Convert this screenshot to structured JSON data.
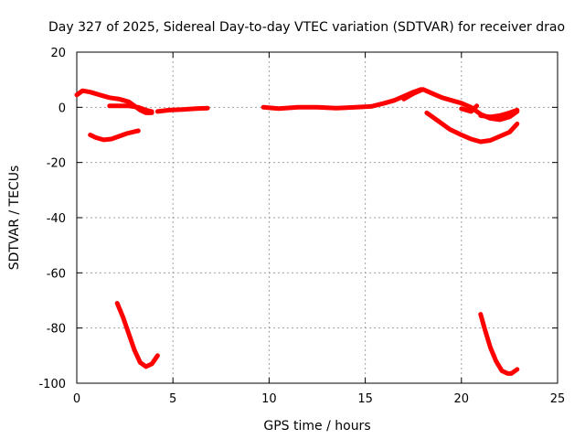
{
  "chart_data": {
    "type": "scatter",
    "title": "Day 327 of 2025, Sidereal Day-to-day VTEC variation (SDTVAR) for receiver drao",
    "xlabel": "GPS time / hours",
    "ylabel": "SDTVAR / TECUs",
    "xlim": [
      0,
      25
    ],
    "ylim": [
      -100,
      20
    ],
    "xticks": [
      0,
      5,
      10,
      15,
      20,
      25
    ],
    "yticks": [
      -100,
      -80,
      -60,
      -40,
      -20,
      0,
      20
    ],
    "grid": true,
    "color": "#ff0000",
    "series": [
      {
        "name": "s1",
        "x": [
          0.0,
          0.3,
          0.7,
          1.2,
          1.7,
          2.2,
          2.7,
          3.0,
          3.3,
          3.6,
          3.9
        ],
        "y": [
          4.5,
          6.0,
          5.5,
          4.5,
          3.5,
          3.0,
          2.0,
          0.5,
          -1.0,
          -2.0,
          -2.0
        ]
      },
      {
        "name": "s2",
        "x": [
          1.7,
          2.2,
          2.7,
          3.2,
          3.6,
          3.9
        ],
        "y": [
          0.5,
          0.5,
          0.5,
          0.0,
          -1.0,
          -1.5
        ]
      },
      {
        "name": "s3",
        "x": [
          4.2,
          4.8,
          5.5,
          6.2,
          6.8
        ],
        "y": [
          -1.5,
          -1.0,
          -0.8,
          -0.5,
          -0.3
        ]
      },
      {
        "name": "s4",
        "x": [
          0.7,
          1.0,
          1.4,
          1.8,
          2.2,
          2.6,
          3.0,
          3.2
        ],
        "y": [
          -10.0,
          -11.0,
          -11.8,
          -11.5,
          -10.5,
          -9.5,
          -8.8,
          -8.5
        ]
      },
      {
        "name": "s5",
        "x": [
          9.7,
          10.5,
          11.5,
          12.5,
          13.5,
          14.5,
          15.3,
          16.0,
          16.5,
          17.0,
          17.5,
          17.9
        ],
        "y": [
          0.0,
          -0.5,
          0.0,
          0.0,
          -0.3,
          0.0,
          0.3,
          1.5,
          2.5,
          4.0,
          5.5,
          6.5
        ]
      },
      {
        "name": "s6",
        "x": [
          17.0,
          17.5,
          18.0,
          18.5,
          19.0,
          19.5,
          20.0,
          20.5,
          21.0,
          21.5,
          22.0,
          22.5,
          22.9
        ],
        "y": [
          3.0,
          5.0,
          6.5,
          5.0,
          3.5,
          2.5,
          1.5,
          0.0,
          -2.5,
          -4.0,
          -4.5,
          -3.5,
          -1.5
        ]
      },
      {
        "name": "s7",
        "x": [
          20.0,
          20.5,
          20.8
        ],
        "y": [
          -0.5,
          -1.5,
          0.5
        ]
      },
      {
        "name": "s8",
        "x": [
          21.0,
          21.5,
          22.0,
          22.5,
          22.9
        ],
        "y": [
          -3.0,
          -3.5,
          -3.0,
          -2.0,
          -1.0
        ]
      },
      {
        "name": "s9",
        "x": [
          18.2,
          18.8,
          19.4,
          20.0,
          20.5,
          21.0,
          21.5,
          22.0,
          22.5,
          22.9
        ],
        "y": [
          -2.0,
          -5.0,
          -8.0,
          -10.0,
          -11.5,
          -12.5,
          -12.0,
          -10.5,
          -9.0,
          -6.0
        ]
      },
      {
        "name": "s10",
        "x": [
          2.1,
          2.4,
          2.7,
          3.0,
          3.3,
          3.6,
          3.9,
          4.2
        ],
        "y": [
          -71.0,
          -76.0,
          -82.0,
          -88.0,
          -92.5,
          -94.0,
          -93.0,
          -90.0
        ]
      },
      {
        "name": "s11",
        "x": [
          21.0,
          21.2,
          21.5,
          21.8,
          22.1,
          22.4,
          22.6,
          22.9
        ],
        "y": [
          -75.0,
          -80.0,
          -87.0,
          -92.0,
          -95.5,
          -96.5,
          -96.5,
          -95.0
        ]
      }
    ]
  }
}
